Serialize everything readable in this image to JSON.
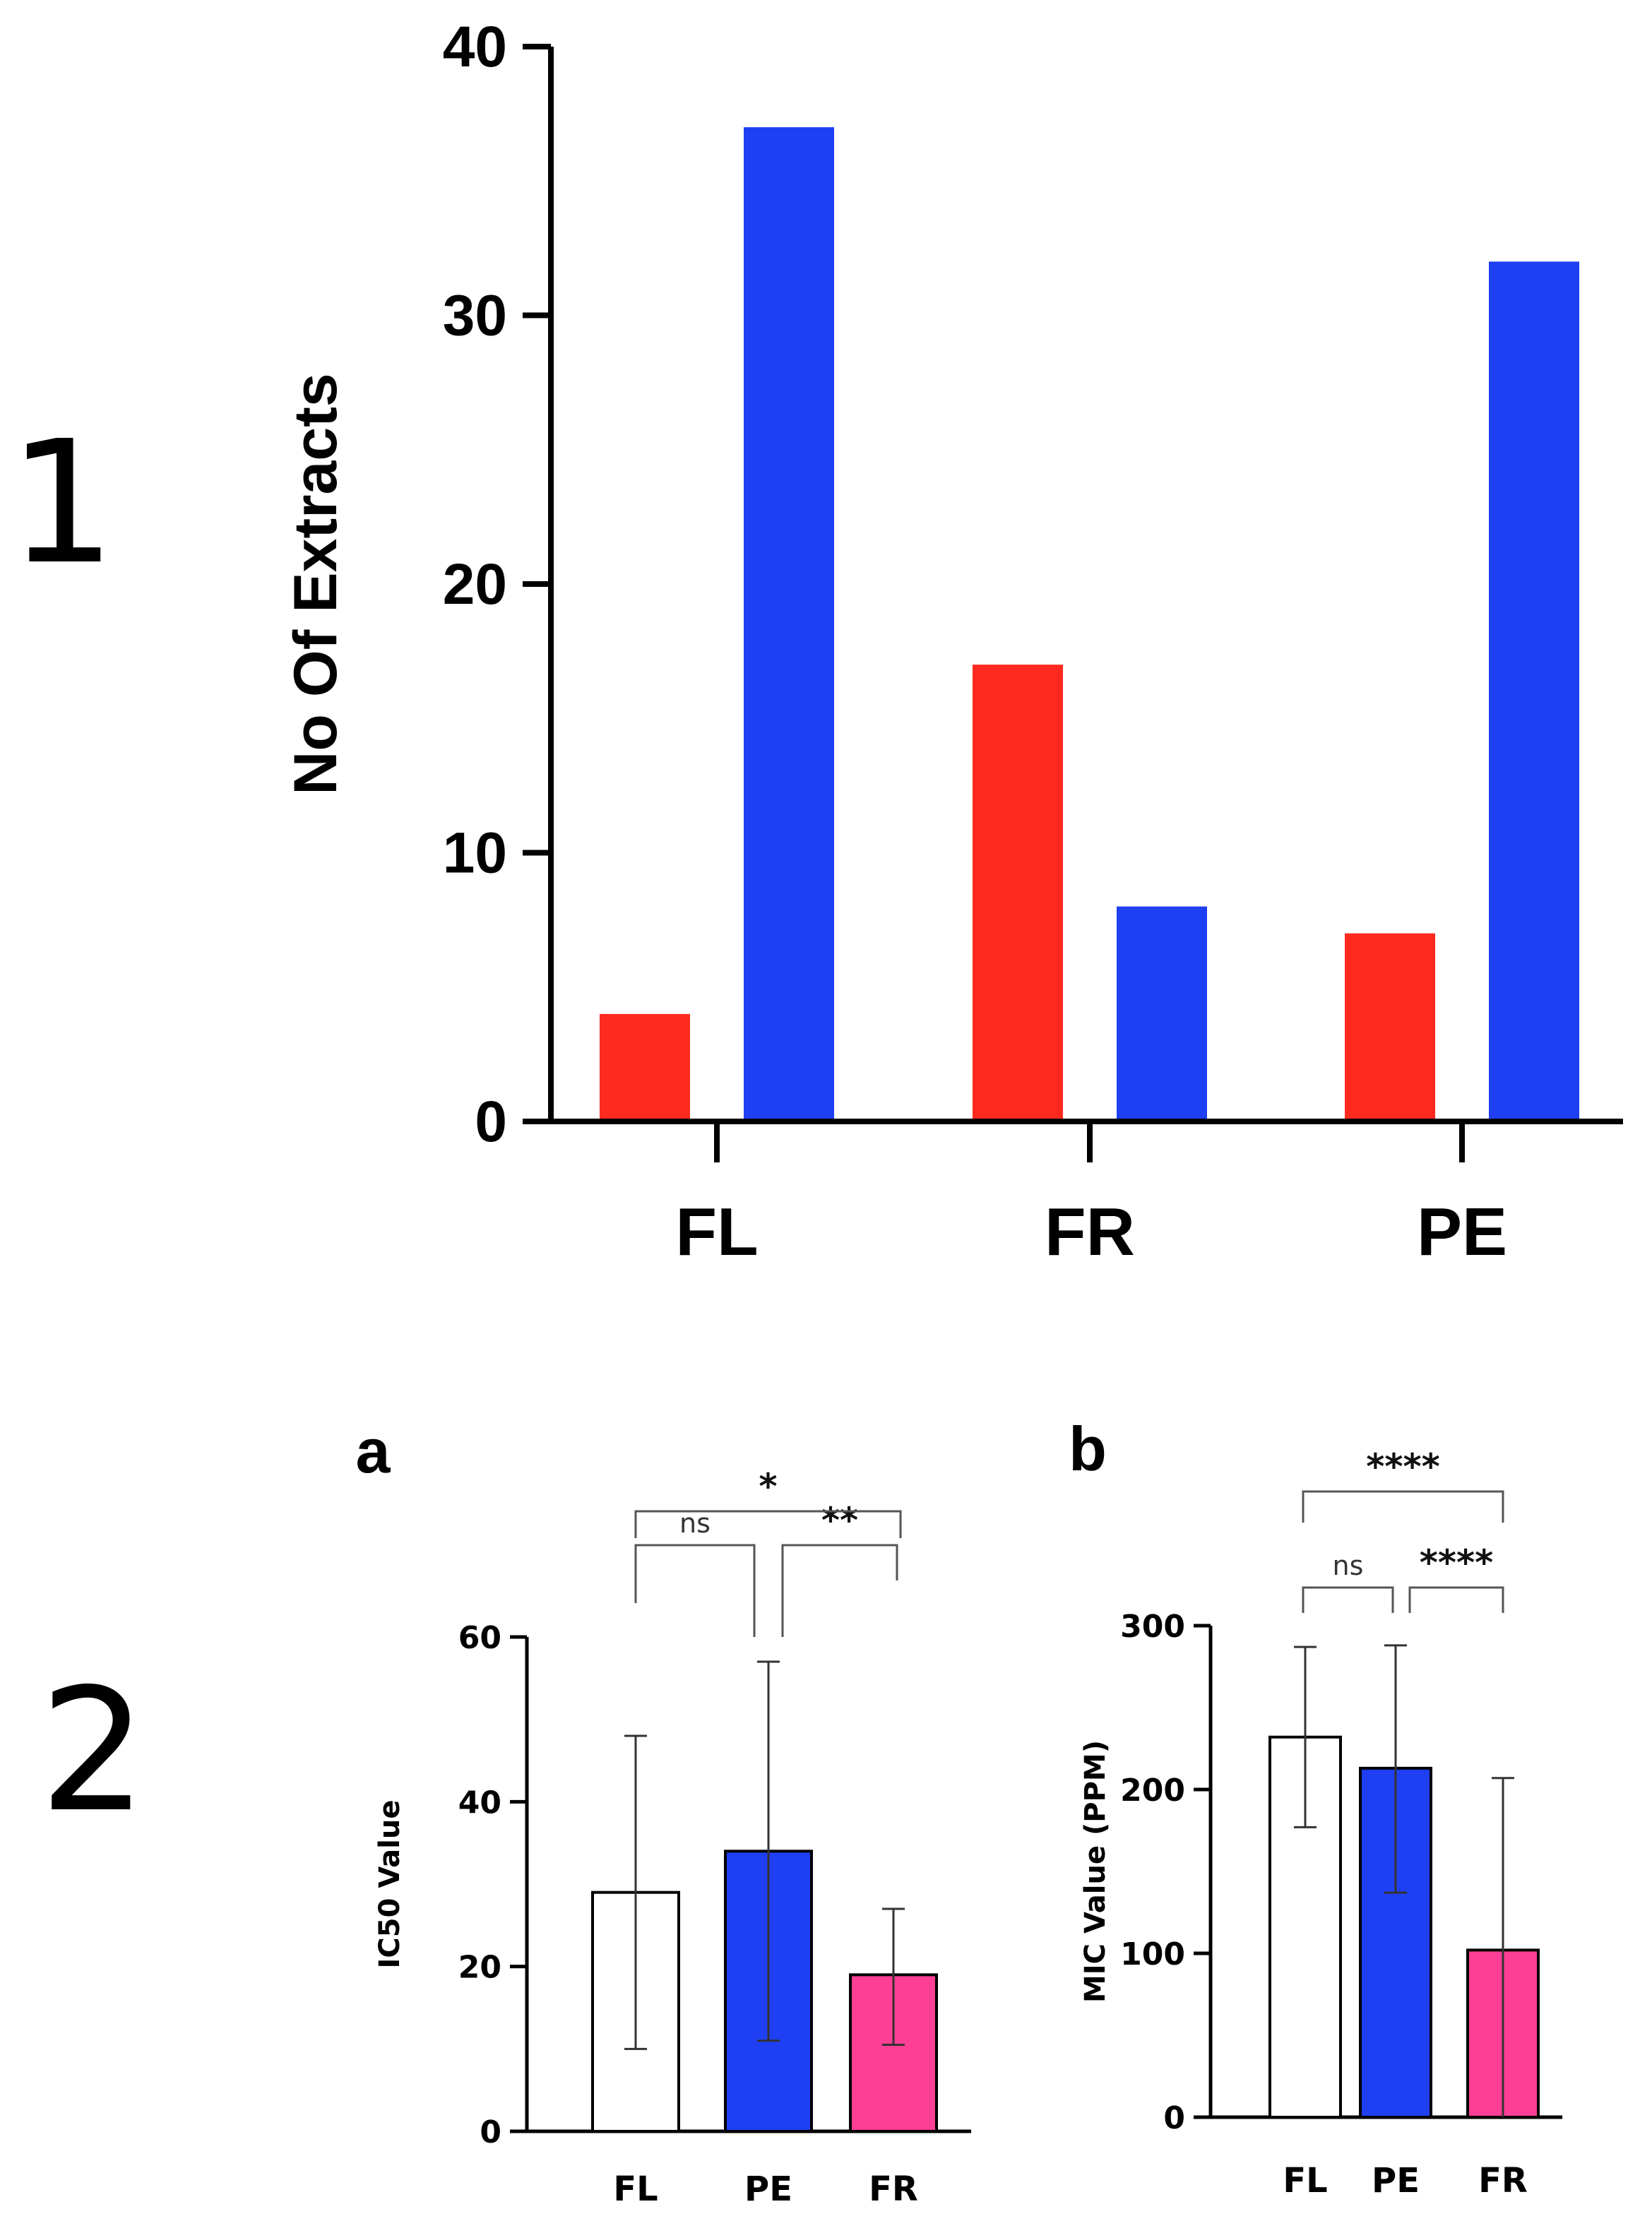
{
  "figure": {
    "panel1_label": "1",
    "panel2_label": "2",
    "panel2a_label": "a",
    "panel2b_label": "b"
  },
  "colors": {
    "red": "#ff2a1f",
    "blue": "#1f3ff2",
    "pink": "#ff3e95",
    "white": "#ffffff",
    "axis": "#000000"
  },
  "chart_data": [
    {
      "id": "chart1",
      "type": "bar",
      "title": "",
      "xlabel": "",
      "ylabel": "No Of Extracts",
      "ylim": [
        0,
        40
      ],
      "yticks": [
        0,
        10,
        20,
        30,
        40
      ],
      "categories": [
        "FL",
        "FR",
        "PE"
      ],
      "series": [
        {
          "name": "series-red",
          "color": "#ff2a1f",
          "values": [
            4,
            17,
            7
          ]
        },
        {
          "name": "series-blue",
          "color": "#1f3ff2",
          "values": [
            37,
            8,
            32
          ]
        }
      ],
      "grid": false,
      "legend": "none"
    },
    {
      "id": "chart2a",
      "type": "bar",
      "title": "",
      "xlabel": "",
      "ylabel": "IC50 Value",
      "ylim": [
        0,
        60
      ],
      "yticks": [
        0,
        20,
        40,
        60
      ],
      "categories": [
        "FL",
        "PE",
        "FR"
      ],
      "values": [
        29,
        34,
        19
      ],
      "error_low": [
        10,
        11,
        10.5
      ],
      "error_high": [
        48,
        57,
        27
      ],
      "colors": [
        "#ffffff",
        "#1f3ff2",
        "#ff3e95"
      ],
      "significance": [
        {
          "label": "ns",
          "from": "FL",
          "to": "PE"
        },
        {
          "label": "**",
          "from": "PE",
          "to": "FR"
        },
        {
          "label": "*",
          "from": "FL",
          "to": "FR"
        }
      ],
      "grid": false,
      "legend": "none"
    },
    {
      "id": "chart2b",
      "type": "bar",
      "title": "",
      "xlabel": "",
      "ylabel": "MIC Value (PPM)",
      "ylim": [
        0,
        300
      ],
      "yticks": [
        0,
        100,
        200,
        300
      ],
      "categories": [
        "FL",
        "PE",
        "FR"
      ],
      "values": [
        232,
        213,
        102
      ],
      "error_low": [
        177,
        137,
        0
      ],
      "error_high": [
        287,
        288,
        207
      ],
      "colors": [
        "#ffffff",
        "#1f3ff2",
        "#ff3e95"
      ],
      "significance": [
        {
          "label": "ns",
          "from": "FL",
          "to": "PE"
        },
        {
          "label": "****",
          "from": "PE",
          "to": "FR"
        },
        {
          "label": "****",
          "from": "FL",
          "to": "FR"
        }
      ],
      "grid": false,
      "legend": "none"
    }
  ]
}
